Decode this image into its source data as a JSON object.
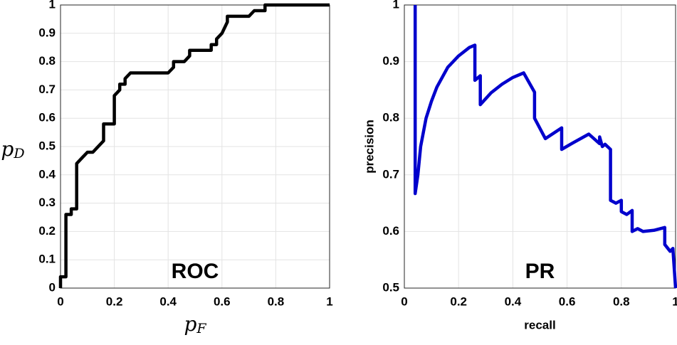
{
  "chart_data": [
    {
      "type": "line",
      "annotation": "ROC",
      "xlabel": "p",
      "xlabel_subscript": "F",
      "ylabel": "p",
      "ylabel_subscript": "D",
      "color": "#000000",
      "grid": true,
      "xlim": [
        0,
        1
      ],
      "ylim": [
        0,
        1
      ],
      "xticks": [
        0,
        0.2,
        0.4,
        0.6,
        0.8,
        1
      ],
      "yticks": [
        0,
        0.1,
        0.2,
        0.3,
        0.4,
        0.5,
        0.6,
        0.7,
        0.8,
        0.9,
        1
      ],
      "x": [
        0,
        0,
        0.02,
        0.02,
        0.04,
        0.04,
        0.06,
        0.06,
        0.08,
        0.1,
        0.12,
        0.14,
        0.16,
        0.16,
        0.2,
        0.2,
        0.22,
        0.22,
        0.24,
        0.24,
        0.26,
        0.4,
        0.42,
        0.42,
        0.46,
        0.48,
        0.48,
        0.56,
        0.56,
        0.58,
        0.58,
        0.6,
        0.62,
        0.62,
        0.7,
        0.72,
        0.76,
        0.76,
        1
      ],
      "y": [
        0,
        0.04,
        0.04,
        0.26,
        0.26,
        0.28,
        0.28,
        0.44,
        0.46,
        0.48,
        0.48,
        0.5,
        0.52,
        0.58,
        0.58,
        0.68,
        0.7,
        0.72,
        0.72,
        0.74,
        0.76,
        0.76,
        0.78,
        0.8,
        0.8,
        0.82,
        0.84,
        0.84,
        0.86,
        0.86,
        0.88,
        0.9,
        0.94,
        0.96,
        0.96,
        0.98,
        0.98,
        1,
        1
      ]
    },
    {
      "type": "line",
      "annotation": "PR",
      "xlabel": "recall",
      "ylabel": "precision",
      "color": "#0000cc",
      "grid": true,
      "xlim": [
        0,
        1
      ],
      "ylim": [
        0.5,
        1
      ],
      "xticks": [
        0,
        0.2,
        0.4,
        0.6,
        0.8,
        1
      ],
      "yticks": [
        0.5,
        0.6,
        0.7,
        0.8,
        0.9,
        1
      ],
      "x": [
        0.04,
        0.04,
        0.05,
        0.06,
        0.08,
        0.1,
        0.12,
        0.16,
        0.2,
        0.24,
        0.26,
        0.26,
        0.28,
        0.28,
        0.32,
        0.36,
        0.4,
        0.44,
        0.48,
        0.48,
        0.52,
        0.58,
        0.58,
        0.62,
        0.68,
        0.72,
        0.72,
        0.73,
        0.74,
        0.76,
        0.76,
        0.78,
        0.8,
        0.8,
        0.82,
        0.84,
        0.84,
        0.86,
        0.88,
        0.92,
        0.96,
        0.96,
        0.98,
        0.99,
        1
      ],
      "y": [
        1,
        0.667,
        0.7,
        0.75,
        0.8,
        0.83,
        0.855,
        0.89,
        0.91,
        0.925,
        0.929,
        0.867,
        0.875,
        0.824,
        0.845,
        0.86,
        0.872,
        0.88,
        0.846,
        0.8,
        0.764,
        0.783,
        0.745,
        0.756,
        0.772,
        0.755,
        0.767,
        0.75,
        0.754,
        0.745,
        0.655,
        0.65,
        0.655,
        0.635,
        0.63,
        0.637,
        0.6,
        0.605,
        0.6,
        0.602,
        0.607,
        0.577,
        0.565,
        0.57,
        0.5
      ]
    }
  ]
}
